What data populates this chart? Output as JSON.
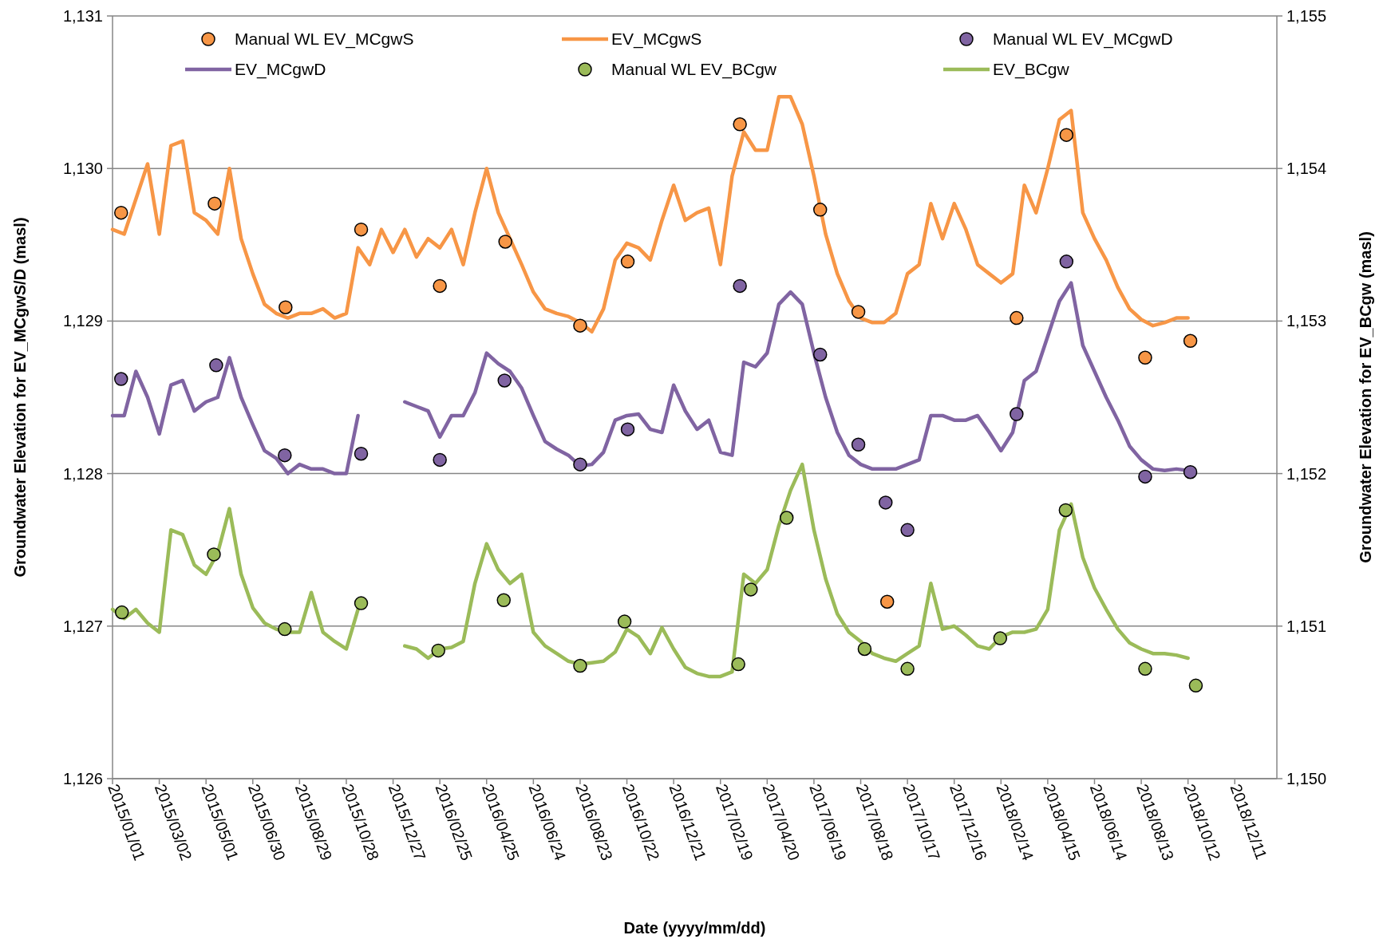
{
  "chart_data": {
    "type": "line",
    "xlabel": "Date (yyyy/mm/dd)",
    "ylabel": "Groundwater Elevation for EV_MCgwS/D (masl)",
    "y2label": "Groundwater Elevation for EV_BCgw (masl)",
    "xlim": [
      "2015-01-01",
      "2019-02-03"
    ],
    "xticks": [
      {
        "value": "2015-01-01",
        "label": "2015/01/01"
      },
      {
        "value": "2015-03-02",
        "label": "2015/03/02"
      },
      {
        "value": "2015-05-01",
        "label": "2015/05/01"
      },
      {
        "value": "2015-06-30",
        "label": "2015/06/30"
      },
      {
        "value": "2015-08-29",
        "label": "2015/08/29"
      },
      {
        "value": "2015-10-28",
        "label": "2015/10/28"
      },
      {
        "value": "2015-12-27",
        "label": "2015/12/27"
      },
      {
        "value": "2016-02-25",
        "label": "2016/02/25"
      },
      {
        "value": "2016-04-25",
        "label": "2016/04/25"
      },
      {
        "value": "2016-06-24",
        "label": "2016/06/24"
      },
      {
        "value": "2016-08-23",
        "label": "2016/08/23"
      },
      {
        "value": "2016-10-22",
        "label": "2016/10/22"
      },
      {
        "value": "2016-12-21",
        "label": "2016/12/21"
      },
      {
        "value": "2017-02-19",
        "label": "2017/02/19"
      },
      {
        "value": "2017-04-20",
        "label": "2017/04/20"
      },
      {
        "value": "2017-06-19",
        "label": "2017/06/19"
      },
      {
        "value": "2017-08-18",
        "label": "2017/08/18"
      },
      {
        "value": "2017-10-17",
        "label": "2017/10/17"
      },
      {
        "value": "2017-12-16",
        "label": "2017/12/16"
      },
      {
        "value": "2018-02-14",
        "label": "2018/02/14"
      },
      {
        "value": "2018-04-15",
        "label": "2018/04/15"
      },
      {
        "value": "2018-06-14",
        "label": "2018/06/14"
      },
      {
        "value": "2018-08-13",
        "label": "2018/08/13"
      },
      {
        "value": "2018-10-12",
        "label": "2018/10/12"
      },
      {
        "value": "2018-12-11",
        "label": "2018/12/11"
      }
    ],
    "ylim": [
      1126,
      1131
    ],
    "yticks": [
      {
        "value": 1126,
        "label": "1,126"
      },
      {
        "value": 1127,
        "label": "1,127"
      },
      {
        "value": 1128,
        "label": "1,128"
      },
      {
        "value": 1129,
        "label": "1,129"
      },
      {
        "value": 1130,
        "label": "1,130"
      },
      {
        "value": 1131,
        "label": "1,131"
      }
    ],
    "y2lim": [
      1150,
      1155
    ],
    "y2ticks": [
      {
        "value": 1150,
        "label": "1,150"
      },
      {
        "value": 1151,
        "label": "1,151"
      },
      {
        "value": 1152,
        "label": "1,152"
      },
      {
        "value": 1153,
        "label": "1,153"
      },
      {
        "value": 1154,
        "label": "1,154"
      },
      {
        "value": 1155,
        "label": "1,155"
      }
    ],
    "grid": "y",
    "legend": "top",
    "x": [
      "2015-01-01",
      "2015-01-16",
      "2015-01-31",
      "2015-02-15",
      "2015-03-02",
      "2015-03-17",
      "2015-04-01",
      "2015-04-16",
      "2015-05-01",
      "2015-05-16",
      "2015-05-31",
      "2015-06-15",
      "2015-06-30",
      "2015-07-15",
      "2015-07-30",
      "2015-08-14",
      "2015-08-29",
      "2015-09-13",
      "2015-09-28",
      "2015-10-13",
      "2015-10-28",
      "2015-11-12",
      "2015-11-27",
      "2015-12-12",
      "2015-12-27",
      "2016-01-11",
      "2016-01-26",
      "2016-02-10",
      "2016-02-25",
      "2016-03-11",
      "2016-03-26",
      "2016-04-10",
      "2016-04-25",
      "2016-05-10",
      "2016-05-25",
      "2016-06-09",
      "2016-06-24",
      "2016-07-09",
      "2016-07-24",
      "2016-08-08",
      "2016-08-23",
      "2016-09-07",
      "2016-09-22",
      "2016-10-07",
      "2016-10-22",
      "2016-11-06",
      "2016-11-21",
      "2016-12-06",
      "2016-12-21",
      "2017-01-05",
      "2017-01-20",
      "2017-02-04",
      "2017-02-19",
      "2017-03-06",
      "2017-03-21",
      "2017-04-05",
      "2017-04-20",
      "2017-05-05",
      "2017-05-20",
      "2017-06-04",
      "2017-06-19",
      "2017-07-04",
      "2017-07-19",
      "2017-08-03",
      "2017-08-18",
      "2017-09-02",
      "2017-09-17",
      "2017-10-02",
      "2017-10-17",
      "2017-11-01",
      "2017-11-16",
      "2017-12-01",
      "2017-12-16",
      "2017-12-31",
      "2018-01-15",
      "2018-01-30",
      "2018-02-14",
      "2018-03-01",
      "2018-03-16",
      "2018-03-31",
      "2018-04-15",
      "2018-04-30",
      "2018-05-15",
      "2018-05-30",
      "2018-06-14",
      "2018-06-29",
      "2018-07-14",
      "2018-07-29",
      "2018-08-13",
      "2018-08-28",
      "2018-09-12",
      "2018-09-27",
      "2018-10-12"
    ],
    "series": [
      {
        "name": "Manual WL EV_MCgwS",
        "type": "scatter",
        "marker": "circle",
        "color": "#f79646",
        "x": [
          "2015-01-12",
          "2015-05-12",
          "2015-08-11",
          "2015-11-16",
          "2016-02-25",
          "2016-05-19",
          "2016-08-23",
          "2016-10-23",
          "2017-03-16",
          "2017-06-27",
          "2017-08-15",
          "2017-09-21",
          "2018-03-06",
          "2018-05-09",
          "2018-08-18",
          "2018-10-15"
        ],
        "values": [
          1129.71,
          1129.77,
          1129.09,
          1129.6,
          1129.23,
          1129.52,
          1128.97,
          1129.39,
          1130.29,
          1129.73,
          1129.06,
          1127.16,
          1129.02,
          1130.22,
          1128.76,
          1128.87
        ]
      },
      {
        "name": "EV_MCgwS",
        "color": "#f79646",
        "values": [
          1129.6,
          1129.57,
          1129.8,
          1130.03,
          1129.57,
          1130.15,
          1130.18,
          1129.71,
          1129.66,
          1129.57,
          1130.0,
          1129.54,
          1129.31,
          1129.11,
          1129.05,
          1129.02,
          1129.05,
          1129.05,
          1129.08,
          1129.02,
          1129.05,
          1129.48,
          1129.37,
          1129.6,
          1129.45,
          1129.6,
          1129.42,
          1129.54,
          1129.48,
          1129.6,
          1129.37,
          1129.71,
          1130.0,
          1129.71,
          1129.54,
          1129.37,
          1129.19,
          1129.08,
          1129.05,
          1129.03,
          1128.99,
          1128.93,
          1129.08,
          1129.4,
          1129.51,
          1129.48,
          1129.4,
          1129.66,
          1129.89,
          1129.66,
          1129.71,
          1129.74,
          1129.37,
          1129.95,
          1130.24,
          1130.12,
          1130.12,
          1130.47,
          1130.47,
          1130.29,
          1129.95,
          1129.57,
          1129.31,
          1129.13,
          1129.02,
          1128.99,
          1128.99,
          1129.05,
          1129.31,
          1129.37,
          1129.77,
          1129.54,
          1129.77,
          1129.6,
          1129.37,
          1129.31,
          1129.25,
          1129.31,
          1129.89,
          1129.71,
          1130.0,
          1130.32,
          1130.38,
          1129.71,
          1129.54,
          1129.4,
          1129.22,
          1129.08,
          1129.01,
          1128.97,
          1128.99,
          1129.02,
          1129.02
        ]
      },
      {
        "name": "Manual WL EV_MCgwD",
        "type": "scatter",
        "marker": "circle",
        "color": "#8064a2",
        "x": [
          "2015-01-12",
          "2015-05-14",
          "2015-08-10",
          "2015-11-16",
          "2016-02-25",
          "2016-05-18",
          "2016-08-23",
          "2016-10-23",
          "2017-03-16",
          "2017-06-27",
          "2017-08-15",
          "2017-09-19",
          "2017-10-17",
          "2018-03-06",
          "2018-05-09",
          "2018-08-18",
          "2018-10-15"
        ],
        "values": [
          1128.62,
          1128.71,
          1128.12,
          1128.13,
          1128.09,
          1128.61,
          1128.06,
          1128.29,
          1129.23,
          1128.78,
          1128.19,
          1127.81,
          1127.63,
          1128.39,
          1129.39,
          1127.98,
          1128.01
        ]
      },
      {
        "name": "EV_MCgwD",
        "color": "#8064a2",
        "values": [
          1128.38,
          1128.38,
          1128.67,
          1128.5,
          1128.26,
          1128.58,
          1128.61,
          1128.41,
          1128.47,
          1128.5,
          1128.76,
          1128.5,
          1128.32,
          1128.15,
          1128.1,
          1128.0,
          1128.06,
          1128.03,
          1128.03,
          1128.0,
          1128.0,
          1128.38,
          null,
          null,
          null,
          1128.47,
          1128.44,
          1128.41,
          1128.24,
          1128.38,
          1128.38,
          1128.53,
          1128.79,
          1128.72,
          1128.67,
          1128.56,
          1128.38,
          1128.21,
          1128.16,
          1128.12,
          1128.05,
          1128.06,
          1128.14,
          1128.35,
          1128.38,
          1128.39,
          1128.29,
          1128.27,
          1128.58,
          1128.41,
          1128.29,
          1128.35,
          1128.14,
          1128.12,
          1128.73,
          1128.7,
          1128.79,
          1129.11,
          1129.19,
          1129.11,
          1128.79,
          1128.5,
          1128.27,
          1128.12,
          1128.06,
          1128.03,
          1128.03,
          1128.03,
          1128.06,
          1128.09,
          1128.38,
          1128.38,
          1128.35,
          1128.35,
          1128.38,
          1128.27,
          1128.15,
          1128.27,
          1128.61,
          1128.67,
          1128.9,
          1129.13,
          1129.25,
          1128.84,
          1128.67,
          1128.5,
          1128.35,
          1128.18,
          1128.09,
          1128.03,
          1128.02,
          1128.03,
          1128.02
        ]
      },
      {
        "name": "Manual WL EV_BCgw",
        "type": "scatter",
        "marker": "circle",
        "axis": "y2",
        "color": "#9bbb59",
        "x": [
          "2015-01-13",
          "2015-05-11",
          "2015-08-10",
          "2015-11-16",
          "2016-02-23",
          "2016-05-17",
          "2016-08-23",
          "2016-10-19",
          "2017-03-14",
          "2017-03-30",
          "2017-05-15",
          "2017-08-23",
          "2017-10-17",
          "2018-02-13",
          "2018-05-08",
          "2018-08-18",
          "2018-10-22"
        ],
        "values": [
          1151.09,
          1151.47,
          1150.98,
          1151.15,
          1150.84,
          1151.17,
          1150.74,
          1151.03,
          1150.75,
          1151.24,
          1151.71,
          1150.85,
          1150.72,
          1150.92,
          1151.76,
          1150.72,
          1150.61
        ]
      },
      {
        "name": "EV_BCgw",
        "axis": "y2",
        "color": "#9bbb59",
        "values": [
          1151.11,
          1151.05,
          1151.11,
          1151.02,
          1150.96,
          1151.63,
          1151.6,
          1151.4,
          1151.34,
          1151.48,
          1151.77,
          1151.34,
          1151.12,
          1151.02,
          1150.98,
          1150.96,
          1150.96,
          1151.22,
          1150.96,
          1150.9,
          1150.85,
          1151.11,
          null,
          null,
          null,
          1150.87,
          1150.85,
          1150.79,
          1150.85,
          1150.86,
          1150.9,
          1151.28,
          1151.54,
          1151.37,
          1151.28,
          1151.34,
          1150.96,
          1150.87,
          1150.82,
          1150.77,
          1150.75,
          1150.76,
          1150.77,
          1150.83,
          1150.98,
          1150.93,
          1150.82,
          1150.99,
          1150.85,
          1150.73,
          1150.69,
          1150.67,
          1150.67,
          1150.7,
          1151.34,
          1151.28,
          1151.37,
          1151.66,
          1151.89,
          1152.06,
          1151.63,
          1151.31,
          1151.08,
          1150.96,
          1150.9,
          1150.82,
          1150.79,
          1150.77,
          1150.82,
          1150.87,
          1151.28,
          1150.98,
          1151.0,
          1150.94,
          1150.87,
          1150.85,
          1150.93,
          1150.96,
          1150.96,
          1150.98,
          1151.11,
          1151.63,
          1151.8,
          1151.45,
          1151.25,
          1151.11,
          1150.98,
          1150.89,
          1150.85,
          1150.82,
          1150.82,
          1150.81,
          1150.79
        ]
      }
    ]
  }
}
